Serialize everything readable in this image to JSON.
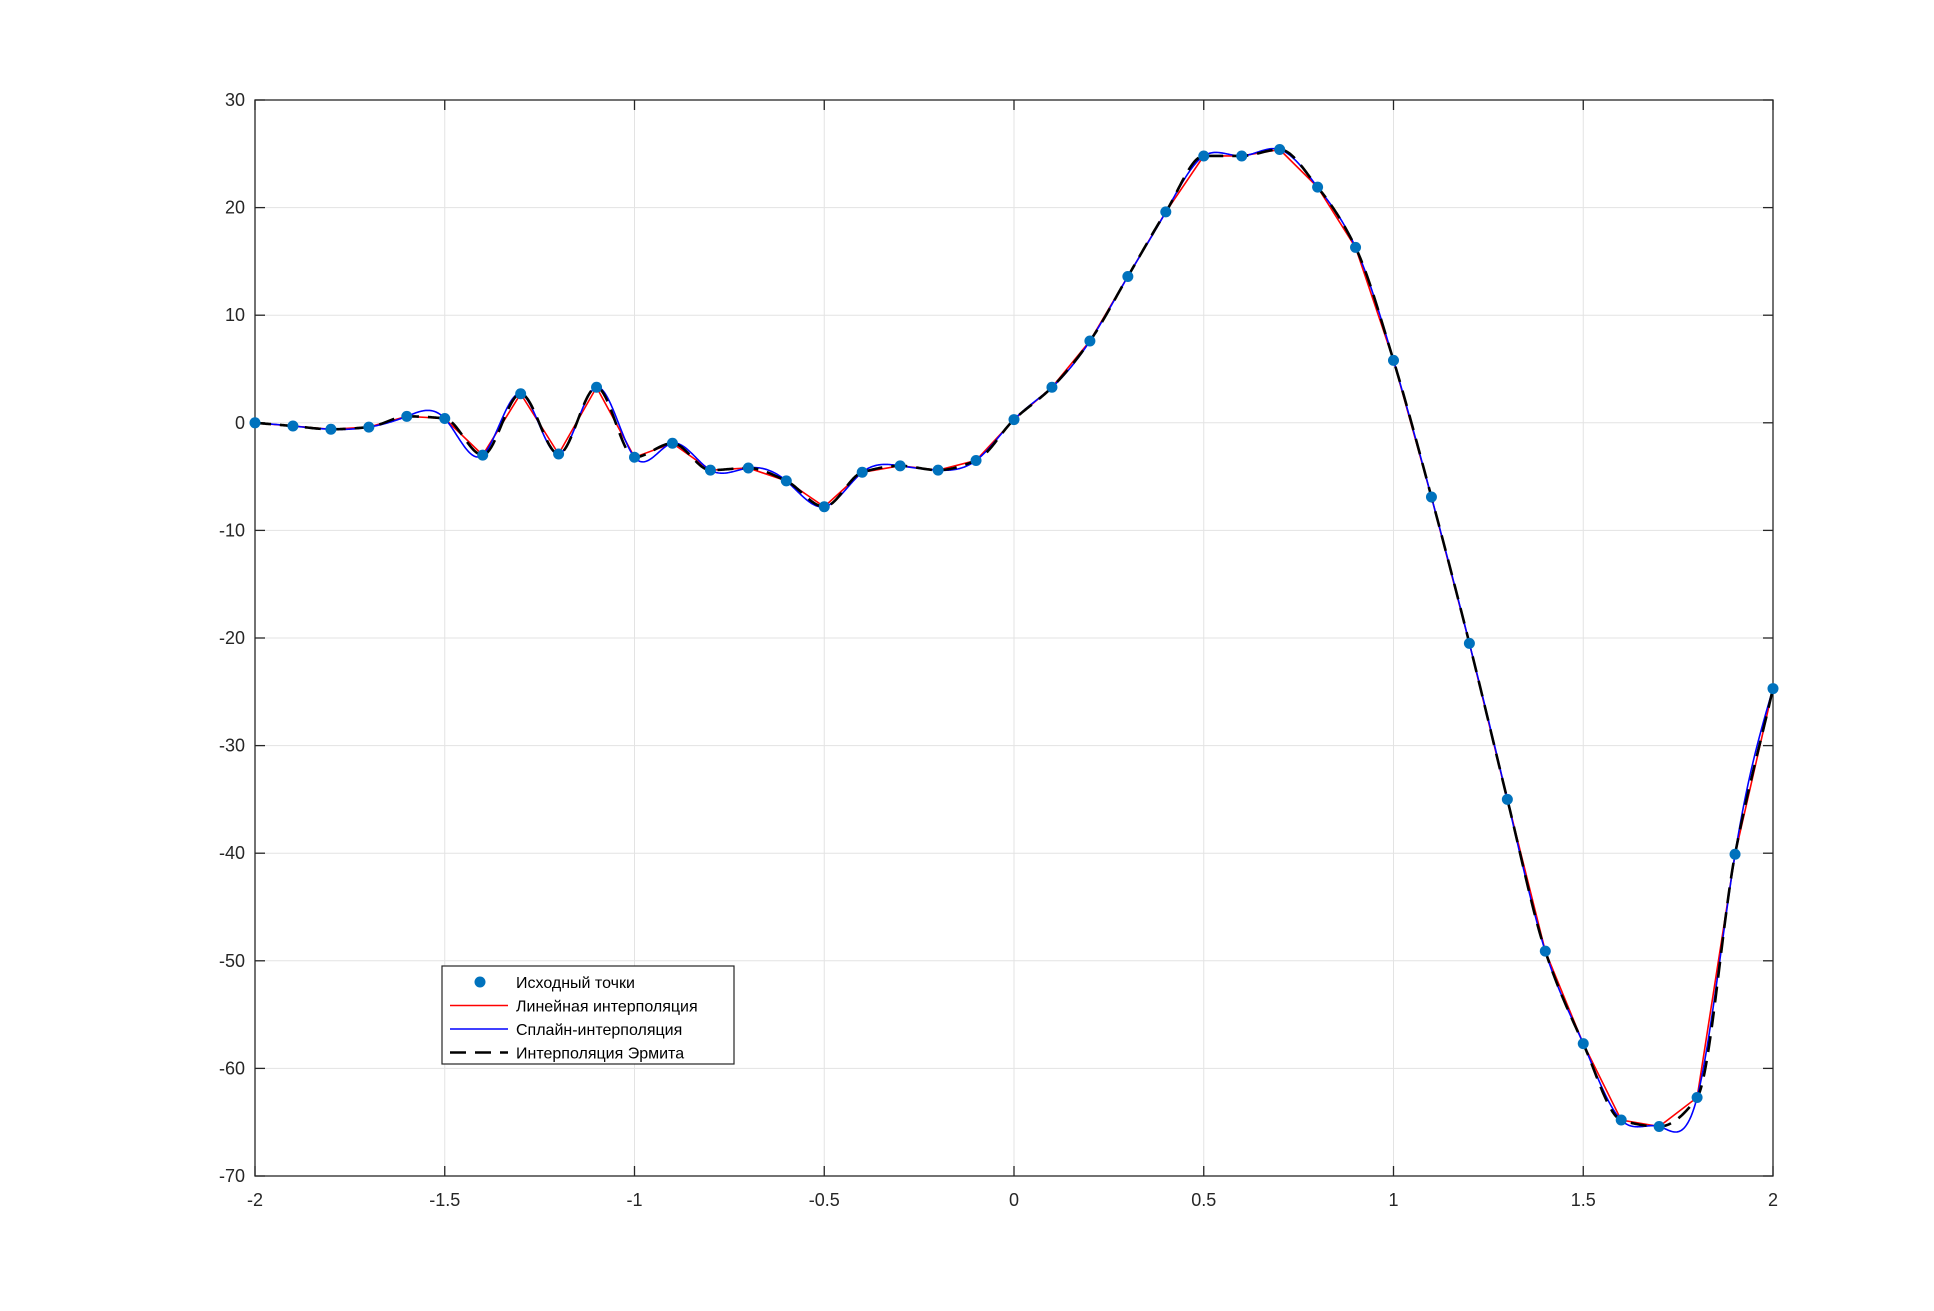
{
  "chart_data": {
    "type": "line",
    "title": "",
    "xlabel": "",
    "ylabel": "",
    "xlim": [
      -2,
      2
    ],
    "ylim": [
      -70,
      30
    ],
    "grid": true,
    "legend_position": "lower-left",
    "x_ticks": [
      "-2",
      "-1.5",
      "-1",
      "-0.5",
      "0",
      "0.5",
      "1",
      "1.5",
      "2"
    ],
    "y_ticks": [
      "30",
      "20",
      "10",
      "0",
      "-10",
      "-20",
      "-30",
      "-40",
      "-50",
      "-60",
      "-70"
    ],
    "x_tick_values": [
      -2,
      -1.5,
      -1,
      -0.5,
      0,
      0.5,
      1,
      1.5,
      2
    ],
    "y_tick_values": [
      30,
      20,
      10,
      0,
      -10,
      -20,
      -30,
      -40,
      -50,
      -60,
      -70
    ],
    "x": [
      -2.0,
      -1.9,
      -1.8,
      -1.7,
      -1.6,
      -1.5,
      -1.4,
      -1.3,
      -1.2,
      -1.1,
      -1.0,
      -0.9,
      -0.8,
      -0.7,
      -0.6,
      -0.5,
      -0.4,
      -0.3,
      -0.2,
      -0.1,
      0.0,
      0.1,
      0.2,
      0.3,
      0.4,
      0.5,
      0.6,
      0.7,
      0.8,
      0.9,
      1.0,
      1.1,
      1.2,
      1.3,
      1.4,
      1.5,
      1.6,
      1.7,
      1.8,
      1.9,
      2.0
    ],
    "series": [
      {
        "name": "Исходный точки",
        "style": "markers",
        "color": "#0072bd",
        "values": [
          0.0,
          -0.3,
          -0.6,
          -0.4,
          0.6,
          0.4,
          -3.0,
          2.7,
          -2.9,
          3.3,
          -3.2,
          -1.9,
          -4.4,
          -4.2,
          -5.4,
          -7.8,
          -4.6,
          -4.0,
          -4.4,
          -3.5,
          0.3,
          3.3,
          7.6,
          13.6,
          19.6,
          24.8,
          24.8,
          25.4,
          21.9,
          16.3,
          5.8,
          -6.9,
          -20.5,
          -35.0,
          -49.1,
          -57.7,
          -64.8,
          -65.4,
          -62.7,
          -40.1,
          -24.7
        ]
      },
      {
        "name": "Линейная интерполяция",
        "style": "solid",
        "color": "#ff0000",
        "values": [
          0.0,
          -0.3,
          -0.6,
          -0.4,
          0.6,
          0.4,
          -3.0,
          2.7,
          -2.9,
          3.3,
          -3.2,
          -1.9,
          -4.4,
          -4.2,
          -5.4,
          -7.8,
          -4.6,
          -4.0,
          -4.4,
          -3.5,
          0.3,
          3.3,
          7.6,
          13.6,
          19.6,
          24.8,
          24.8,
          25.4,
          21.9,
          16.3,
          5.8,
          -6.9,
          -20.5,
          -35.0,
          -49.1,
          -57.7,
          -64.8,
          -65.4,
          -62.7,
          -40.1,
          -24.7
        ]
      },
      {
        "name": "Сплайн-интерполяция",
        "style": "solid",
        "color": "#0000ff",
        "values": [
          0.0,
          -0.3,
          -0.6,
          -0.4,
          0.6,
          0.4,
          -3.0,
          2.7,
          -2.9,
          3.3,
          -3.2,
          -1.9,
          -4.4,
          -4.2,
          -5.4,
          -7.8,
          -4.6,
          -4.0,
          -4.4,
          -3.5,
          0.3,
          3.3,
          7.6,
          13.6,
          19.6,
          24.8,
          24.8,
          25.4,
          21.9,
          16.3,
          5.8,
          -6.9,
          -20.5,
          -35.0,
          -49.1,
          -57.7,
          -64.8,
          -65.4,
          -62.7,
          -40.1,
          -24.7
        ]
      },
      {
        "name": "Интерполяция Эрмита",
        "style": "dashed",
        "color": "#000000",
        "values": [
          0.0,
          -0.3,
          -0.6,
          -0.4,
          0.6,
          0.4,
          -3.0,
          2.7,
          -2.9,
          3.3,
          -3.2,
          -1.9,
          -4.4,
          -4.2,
          -5.4,
          -7.8,
          -4.6,
          -4.0,
          -4.4,
          -3.5,
          0.3,
          3.3,
          7.6,
          13.6,
          19.6,
          24.8,
          24.8,
          25.4,
          21.9,
          16.3,
          5.8,
          -6.9,
          -20.5,
          -35.0,
          -49.1,
          -57.7,
          -64.8,
          -65.4,
          -62.7,
          -40.1,
          -24.7
        ]
      }
    ],
    "legend": [
      "Исходный точки",
      "Линейная интерполяция",
      "Сплайн-интерполяция",
      "Интерполяция Эрмита"
    ]
  }
}
